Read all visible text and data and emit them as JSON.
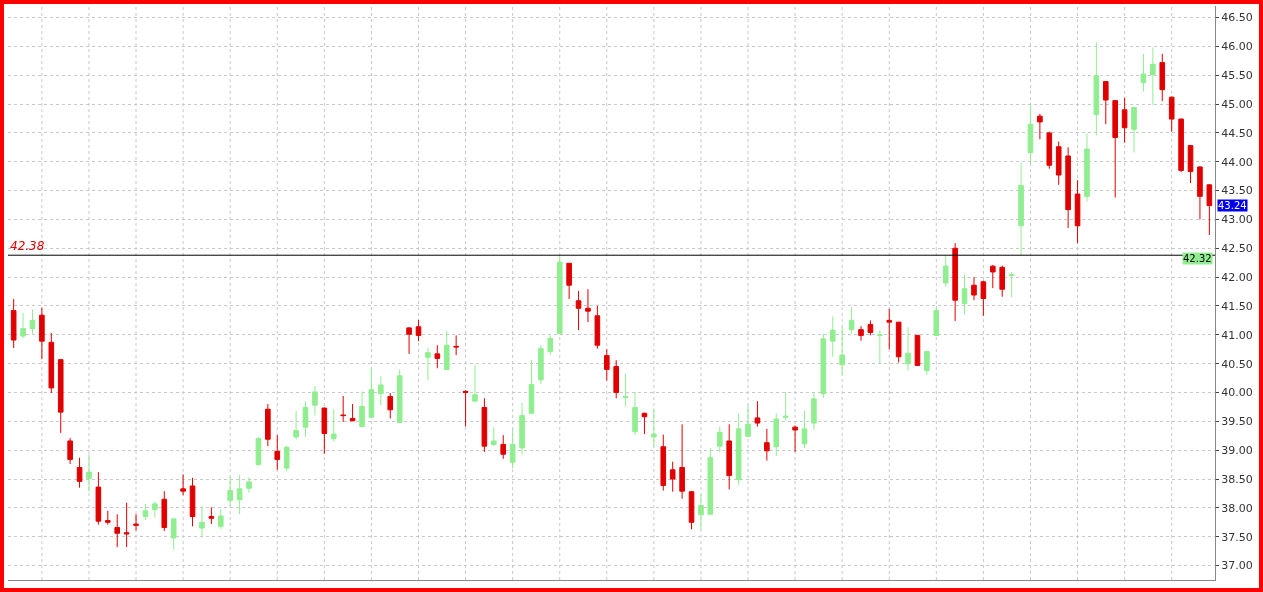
{
  "chart_data": {
    "type": "candlestick",
    "categories": [
      null,
      null,
      null,
      null,
      null,
      null,
      null,
      null,
      null,
      null,
      null,
      null,
      null,
      null,
      null,
      null,
      null,
      null,
      null,
      null,
      null,
      null,
      null,
      null,
      null,
      null,
      null,
      null,
      null,
      null,
      null,
      null,
      null,
      null,
      null,
      null,
      null,
      null,
      null,
      null,
      null,
      null,
      null,
      null,
      null,
      null,
      null,
      null,
      null,
      null,
      null,
      null,
      null,
      null,
      null,
      null,
      null,
      null,
      null,
      null,
      null,
      null,
      null,
      null,
      null,
      null,
      null,
      null,
      null,
      null,
      null,
      null,
      null,
      null,
      null,
      null,
      null,
      null,
      null,
      null,
      null,
      null,
      null,
      null,
      null,
      null,
      null,
      null,
      null,
      null,
      null,
      null,
      null,
      null,
      null,
      null,
      null,
      null,
      null,
      null,
      null,
      null,
      null,
      null,
      null,
      null,
      null,
      null,
      null,
      null,
      null,
      null,
      null,
      null,
      null,
      null,
      null,
      null,
      null,
      null,
      null,
      null,
      null,
      null,
      null,
      null,
      null,
      null
    ],
    "ohlc": [
      [
        41.42,
        41.62,
        40.77,
        40.91
      ],
      [
        40.98,
        41.38,
        40.94,
        41.11
      ],
      [
        41.11,
        41.44,
        41.02,
        41.25
      ],
      [
        41.34,
        41.47,
        40.58,
        40.89
      ],
      [
        40.87,
        41.03,
        39.99,
        40.08
      ],
      [
        40.57,
        40.57,
        39.3,
        39.66
      ],
      [
        39.16,
        39.21,
        38.76,
        38.84
      ],
      [
        38.7,
        38.87,
        38.35,
        38.46
      ],
      [
        38.51,
        38.93,
        38.28,
        38.62
      ],
      [
        38.36,
        38.62,
        37.71,
        37.77
      ],
      [
        37.78,
        37.95,
        37.71,
        37.75
      ],
      [
        37.66,
        37.89,
        37.32,
        37.56
      ],
      [
        37.57,
        38.09,
        37.32,
        37.55
      ],
      [
        37.72,
        37.89,
        37.61,
        37.7
      ],
      [
        37.85,
        38.07,
        37.79,
        37.95
      ],
      [
        37.97,
        38.11,
        37.83,
        38.07
      ],
      [
        38.15,
        38.29,
        37.6,
        37.66
      ],
      [
        37.48,
        37.81,
        37.28,
        37.81
      ],
      [
        38.33,
        38.58,
        38.22,
        38.29
      ],
      [
        38.38,
        38.52,
        37.68,
        37.85
      ],
      [
        37.65,
        38.03,
        37.49,
        37.75
      ],
      [
        37.85,
        38.01,
        37.72,
        37.82
      ],
      [
        37.68,
        37.97,
        37.63,
        37.86
      ],
      [
        38.13,
        38.54,
        38.03,
        38.3
      ],
      [
        38.14,
        38.57,
        37.89,
        38.33
      ],
      [
        38.34,
        38.53,
        38.26,
        38.45
      ],
      [
        38.75,
        39.23,
        38.74,
        39.2
      ],
      [
        39.71,
        39.8,
        39.07,
        39.19
      ],
      [
        38.98,
        39.26,
        38.66,
        38.84
      ],
      [
        38.69,
        39.08,
        38.64,
        39.05
      ],
      [
        39.23,
        39.68,
        39.19,
        39.34
      ],
      [
        39.4,
        39.84,
        39.23,
        39.74
      ],
      [
        39.78,
        40.11,
        39.6,
        40.01
      ],
      [
        39.73,
        39.74,
        38.94,
        39.29
      ],
      [
        39.2,
        39.71,
        39.15,
        39.28
      ],
      [
        39.61,
        39.94,
        39.49,
        39.6
      ],
      [
        39.55,
        39.8,
        39.51,
        39.51
      ],
      [
        39.41,
        40.02,
        39.4,
        39.76
      ],
      [
        39.57,
        40.43,
        39.55,
        40.05
      ],
      [
        39.98,
        40.28,
        39.78,
        40.13
      ],
      [
        39.93,
        39.99,
        39.55,
        39.7
      ],
      [
        39.48,
        40.4,
        39.47,
        40.29
      ],
      [
        41.12,
        41.13,
        40.67,
        41.01
      ],
      [
        41.14,
        41.26,
        40.89,
        40.99
      ],
      [
        40.61,
        40.78,
        40.21,
        40.69
      ],
      [
        40.67,
        40.82,
        40.42,
        40.59
      ],
      [
        40.4,
        41.07,
        40.39,
        40.82
      ],
      [
        40.8,
        40.99,
        40.65,
        40.79
      ],
      [
        40.02,
        40.04,
        39.41,
        40.0
      ],
      [
        39.85,
        40.48,
        39.85,
        39.96
      ],
      [
        39.74,
        39.9,
        38.97,
        39.07
      ],
      [
        39.1,
        39.4,
        39.07,
        39.16
      ],
      [
        39.1,
        39.26,
        38.85,
        38.93
      ],
      [
        38.79,
        39.36,
        38.69,
        39.1
      ],
      [
        39.04,
        39.82,
        38.92,
        39.6
      ],
      [
        39.64,
        40.56,
        39.64,
        40.14
      ],
      [
        40.22,
        40.82,
        40.15,
        40.76
      ],
      [
        40.71,
        40.99,
        40.65,
        40.94
      ],
      [
        41.02,
        42.37,
        41.02,
        42.26
      ],
      [
        42.24,
        42.24,
        41.62,
        41.86
      ],
      [
        41.59,
        41.76,
        41.08,
        41.46
      ],
      [
        41.46,
        41.79,
        41.22,
        41.41
      ],
      [
        41.33,
        41.5,
        40.76,
        40.82
      ],
      [
        40.64,
        40.75,
        40.21,
        40.4
      ],
      [
        40.45,
        40.56,
        39.9,
        40.0
      ],
      [
        39.91,
        40.33,
        39.76,
        39.93
      ],
      [
        39.32,
        40.01,
        39.26,
        39.74
      ],
      [
        39.64,
        39.65,
        39.28,
        39.58
      ],
      [
        39.23,
        39.72,
        39.06,
        39.28
      ],
      [
        39.06,
        39.27,
        38.3,
        38.39
      ],
      [
        38.66,
        38.8,
        38.28,
        38.5
      ],
      [
        38.7,
        39.45,
        38.16,
        38.29
      ],
      [
        38.28,
        38.29,
        37.63,
        37.75
      ],
      [
        37.88,
        38.24,
        37.63,
        38.04
      ],
      [
        37.89,
        39.04,
        37.89,
        38.87
      ],
      [
        39.07,
        39.41,
        38.97,
        39.31
      ],
      [
        39.16,
        39.45,
        38.32,
        38.56
      ],
      [
        38.49,
        39.63,
        38.4,
        39.37
      ],
      [
        39.24,
        39.77,
        39.24,
        39.45
      ],
      [
        39.56,
        39.85,
        39.41,
        39.47
      ],
      [
        39.13,
        39.37,
        38.82,
        38.99
      ],
      [
        39.06,
        39.64,
        38.9,
        39.54
      ],
      [
        39.57,
        40.01,
        39.51,
        39.59
      ],
      [
        39.4,
        39.43,
        38.97,
        39.35
      ],
      [
        39.11,
        39.68,
        39.04,
        39.37
      ],
      [
        39.47,
        40.0,
        39.35,
        39.89
      ],
      [
        39.98,
        41.02,
        39.91,
        40.93
      ],
      [
        40.89,
        41.32,
        40.62,
        41.08
      ],
      [
        40.48,
        41.13,
        40.31,
        40.65
      ],
      [
        41.09,
        41.48,
        41.02,
        41.25
      ],
      [
        41.09,
        41.15,
        40.9,
        40.99
      ],
      [
        41.18,
        41.25,
        40.99,
        41.04
      ],
      [
        40.99,
        41.08,
        40.51,
        41.0
      ],
      [
        41.25,
        41.45,
        40.75,
        41.22
      ],
      [
        41.22,
        41.22,
        40.52,
        40.62
      ],
      [
        40.5,
        41.13,
        40.38,
        40.68
      ],
      [
        40.99,
        40.99,
        40.47,
        40.47
      ],
      [
        40.38,
        40.71,
        40.31,
        40.71
      ],
      [
        40.99,
        41.5,
        40.99,
        41.42
      ],
      [
        41.9,
        42.38,
        41.83,
        42.19
      ],
      [
        42.5,
        42.59,
        41.24,
        41.6
      ],
      [
        41.54,
        42.04,
        41.35,
        41.8
      ],
      [
        41.86,
        42.0,
        41.6,
        41.69
      ],
      [
        41.92,
        41.94,
        41.33,
        41.63
      ],
      [
        42.19,
        42.21,
        41.81,
        42.09
      ],
      [
        42.17,
        42.2,
        41.66,
        41.79
      ],
      [
        42.03,
        42.09,
        41.65,
        42.04
      ],
      [
        42.89,
        43.99,
        42.38,
        43.59
      ],
      [
        44.16,
        44.99,
        43.97,
        44.65
      ],
      [
        44.79,
        44.83,
        44.39,
        44.69
      ],
      [
        44.5,
        44.52,
        43.88,
        43.94
      ],
      [
        44.26,
        44.35,
        43.6,
        43.77
      ],
      [
        44.1,
        44.25,
        42.85,
        43.17
      ],
      [
        43.44,
        43.68,
        42.59,
        42.89
      ],
      [
        43.4,
        44.49,
        43.31,
        44.22
      ],
      [
        44.82,
        46.07,
        44.46,
        45.49
      ],
      [
        45.39,
        45.4,
        44.65,
        45.07
      ],
      [
        45.06,
        45.06,
        43.38,
        44.42
      ],
      [
        44.9,
        45.11,
        44.33,
        44.59
      ],
      [
        44.56,
        44.94,
        44.16,
        44.94
      ],
      [
        45.37,
        45.87,
        45.22,
        45.52
      ],
      [
        45.51,
        45.98,
        44.98,
        45.69
      ],
      [
        45.72,
        45.87,
        45.05,
        45.25
      ],
      [
        45.12,
        45.13,
        44.52,
        44.74
      ],
      [
        44.74,
        44.75,
        43.82,
        43.85
      ],
      [
        44.28,
        44.29,
        43.63,
        43.83
      ],
      [
        43.91,
        43.92,
        43.0,
        43.4
      ],
      [
        43.6,
        43.61,
        42.73,
        43.24
      ]
    ],
    "colors": [
      "#e00000",
      "#90ee90",
      "#90ee90",
      "#e00000",
      "#e00000",
      "#e00000",
      "#e00000",
      "#e00000",
      "#90ee90",
      "#e00000",
      "#e00000",
      "#e00000",
      "#e00000",
      "#e00000",
      "#90ee90",
      "#90ee90",
      "#e00000",
      "#90ee90",
      "#e00000",
      "#e00000",
      "#90ee90",
      "#e00000",
      "#90ee90",
      "#90ee90",
      "#90ee90",
      "#90ee90",
      "#90ee90",
      "#e00000",
      "#e00000",
      "#90ee90",
      "#90ee90",
      "#90ee90",
      "#90ee90",
      "#e00000",
      "#90ee90",
      "#e00000",
      "#e00000",
      "#90ee90",
      "#90ee90",
      "#90ee90",
      "#e00000",
      "#90ee90",
      "#e00000",
      "#e00000",
      "#90ee90",
      "#e00000",
      "#90ee90",
      "#e00000",
      "#e00000",
      "#90ee90",
      "#e00000",
      "#90ee90",
      "#e00000",
      "#90ee90",
      "#90ee90",
      "#90ee90",
      "#90ee90",
      "#90ee90",
      "#90ee90",
      "#e00000",
      "#e00000",
      "#e00000",
      "#e00000",
      "#e00000",
      "#e00000",
      "#90ee90",
      "#90ee90",
      "#e00000",
      "#90ee90",
      "#e00000",
      "#e00000",
      "#e00000",
      "#e00000",
      "#90ee90",
      "#90ee90",
      "#90ee90",
      "#e00000",
      "#90ee90",
      "#90ee90",
      "#e00000",
      "#e00000",
      "#90ee90",
      "#90ee90",
      "#e00000",
      "#90ee90",
      "#90ee90",
      "#90ee90",
      "#90ee90",
      "#90ee90",
      "#90ee90",
      "#e00000",
      "#e00000",
      "#90ee90",
      "#e00000",
      "#e00000",
      "#90ee90",
      "#e00000",
      "#90ee90",
      "#90ee90",
      "#90ee90",
      "#e00000",
      "#90ee90",
      "#e00000",
      "#e00000",
      "#e00000",
      "#e00000",
      "#90ee90",
      "#90ee90",
      "#90ee90",
      "#e00000",
      "#e00000",
      "#e00000",
      "#e00000",
      "#e00000",
      "#90ee90",
      "#90ee90",
      "#e00000",
      "#e00000",
      "#e00000",
      "#90ee90",
      "#90ee90",
      "#90ee90",
      "#e00000",
      "#e00000",
      "#e00000",
      "#e00000",
      "#e00000",
      "#e00000"
    ],
    "ylim": [
      36.75,
      46.7
    ],
    "yticks": [
      {
        "value": 37,
        "label": "37.00"
      },
      {
        "value": 37.5,
        "label": "37.50"
      },
      {
        "value": 38,
        "label": "38.00"
      },
      {
        "value": 38.5,
        "label": "38.50"
      },
      {
        "value": 39,
        "label": "39.00"
      },
      {
        "value": 39.5,
        "label": "39.50"
      },
      {
        "value": 40,
        "label": "40.00"
      },
      {
        "value": 40.5,
        "label": "40.50"
      },
      {
        "value": 41,
        "label": "41.00"
      },
      {
        "value": 41.5,
        "label": "41.50"
      },
      {
        "value": 42,
        "label": "42.00"
      },
      {
        "value": 42.5,
        "label": "42.50"
      },
      {
        "value": 43,
        "label": "43.00"
      },
      {
        "value": 43.5,
        "label": "43.50"
      },
      {
        "value": 44,
        "label": "44.00"
      },
      {
        "value": 44.5,
        "label": "44.50"
      },
      {
        "value": 45,
        "label": "45.00"
      },
      {
        "value": 45.5,
        "label": "45.50"
      },
      {
        "value": 46,
        "label": "46.00"
      },
      {
        "value": 46.5,
        "label": "46.50"
      }
    ],
    "ref_lines": [
      {
        "axis": "y",
        "value": 42.38,
        "label": "42.38",
        "color": "#000000"
      }
    ],
    "annotations": [
      "43.24",
      "42.32"
    ],
    "grid": true
  }
}
